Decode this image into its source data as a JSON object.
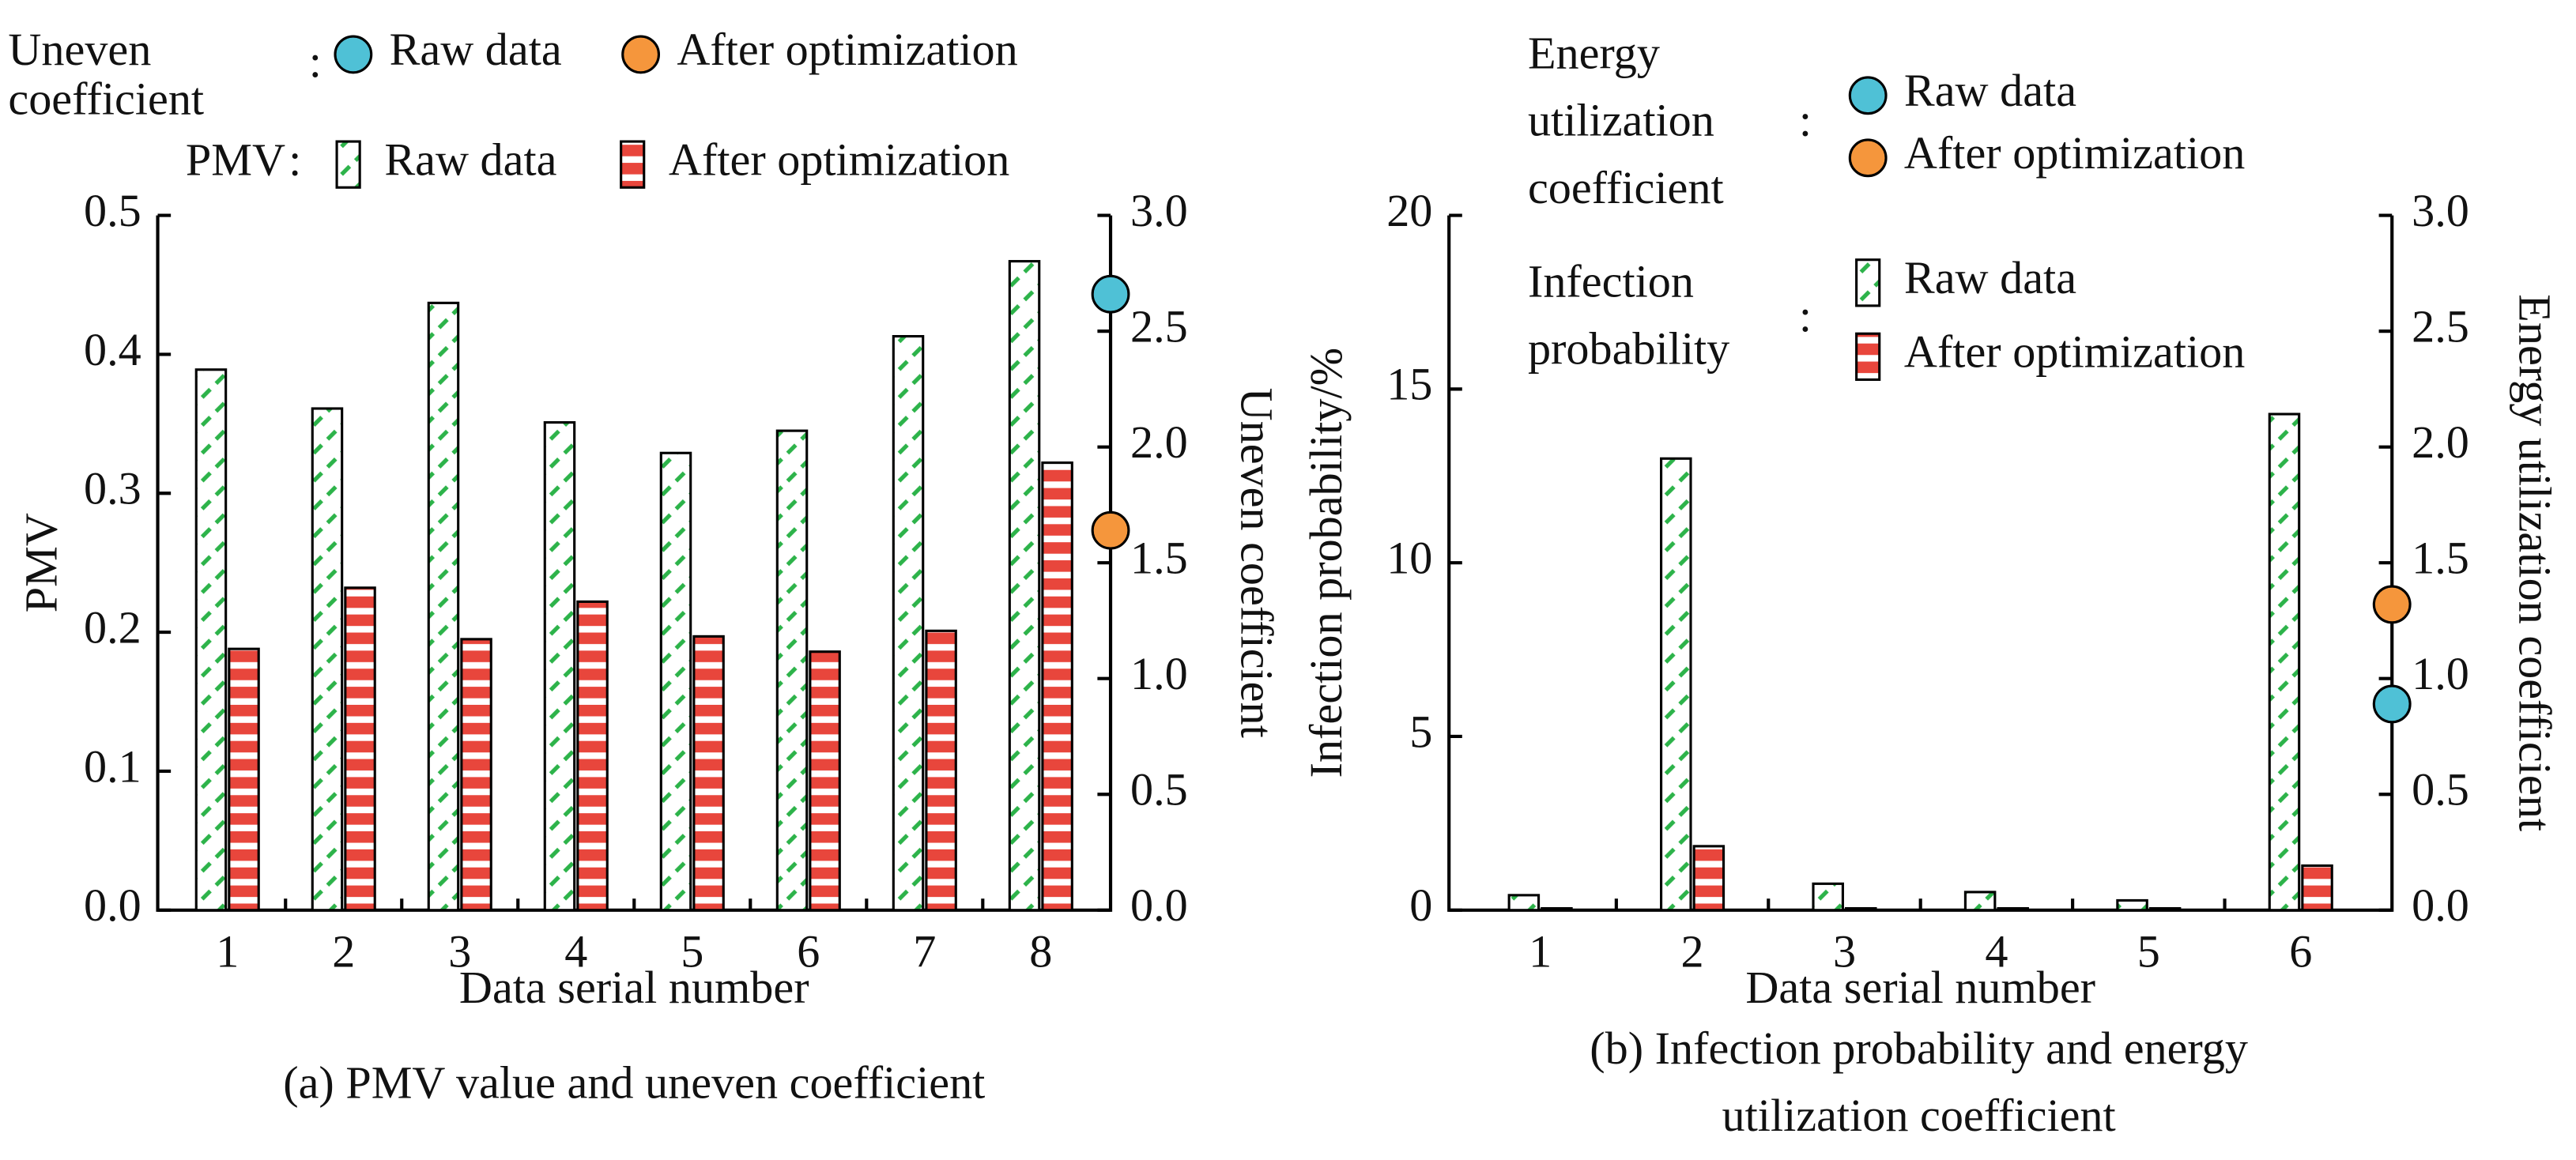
{
  "chart_data": [
    {
      "type": "bar",
      "caption": [
        "(a) PMV value and uneven coefficient"
      ],
      "xlabel": "Data serial number",
      "ylabel": "PMV",
      "y2label": "Uneven coefficient",
      "categories": [
        "1",
        "2",
        "3",
        "4",
        "5",
        "6",
        "7",
        "8"
      ],
      "ylim": [
        0,
        0.5
      ],
      "yticks": [
        {
          "value": 0,
          "label": "0.0"
        },
        0.1,
        0.2,
        0.3,
        0.4,
        0.5
      ],
      "y2lim": [
        0,
        3
      ],
      "y2ticks": [
        {
          "value": 0,
          "label": "0.0"
        },
        0.5,
        {
          "value": 1,
          "label": "1.0"
        },
        1.5,
        {
          "value": 2,
          "label": "2.0"
        },
        2.5,
        {
          "value": 3,
          "label": "3.0"
        }
      ],
      "bars": {
        "title": [
          "PMV"
        ],
        "separator": ":",
        "series": [
          {
            "name": "Raw data",
            "color": "#2db34a",
            "values": [
              0.389,
              0.361,
              0.437,
              0.351,
              0.329,
              0.345,
              0.413,
              0.467
            ]
          },
          {
            "name": "After optimization",
            "color": "#e8463c",
            "values": [
              0.188,
              0.232,
              0.195,
              0.222,
              0.197,
              0.186,
              0.201,
              0.322
            ]
          }
        ]
      },
      "markers": {
        "title": [
          "Uneven",
          "coefficient"
        ],
        "separator": ":",
        "series": [
          {
            "name": "Raw data",
            "color": "#4fc1d6",
            "value": 2.66,
            "axis": "y2"
          },
          {
            "name": "After optimization",
            "color": "#f5963c",
            "value": 1.64,
            "axis": "y2"
          }
        ]
      }
    },
    {
      "type": "bar",
      "caption": [
        "(b) Infection probability and energy",
        "utilization coefficient"
      ],
      "xlabel": "Data serial number",
      "ylabel": "Infection probability/%",
      "y2label": "Energy utilization coefficient",
      "categories": [
        "1",
        "2",
        "3",
        "4",
        "5",
        "6"
      ],
      "ylim": [
        0,
        20
      ],
      "yticks": [
        0,
        5,
        10,
        15,
        20
      ],
      "y2lim": [
        0,
        3
      ],
      "y2ticks": [
        {
          "value": 0,
          "label": "0.0"
        },
        0.5,
        {
          "value": 1,
          "label": "1.0"
        },
        1.5,
        {
          "value": 2,
          "label": "2.0"
        },
        2.5,
        {
          "value": 3,
          "label": "3.0"
        }
      ],
      "bars": {
        "title": [
          "Infection",
          "probability"
        ],
        "separator": ":",
        "series": [
          {
            "name": "Raw data",
            "color": "#2db34a",
            "values": [
              0.43,
              13.0,
              0.76,
              0.52,
              0.28,
              14.28
            ]
          },
          {
            "name": "After optimization",
            "color": "#e8463c",
            "values": [
              0.05,
              1.84,
              0.05,
              0.05,
              0.05,
              1.28
            ]
          }
        ]
      },
      "markers": {
        "title": [
          "Energy",
          "utilization",
          "coefficient"
        ],
        "separator": ":",
        "series": [
          {
            "name": "Raw data",
            "color": "#4fc1d6",
            "value": 0.89,
            "axis": "y2"
          },
          {
            "name": "After optimization",
            "color": "#f5963c",
            "value": 1.32,
            "axis": "y2"
          }
        ]
      }
    }
  ]
}
